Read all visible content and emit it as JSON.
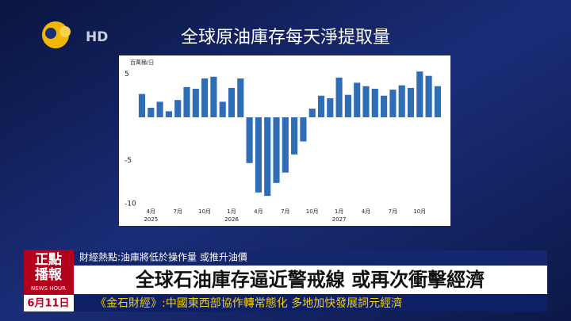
{
  "header": {
    "logo_text": "HD",
    "title": "全球原油庫存每天淨提取量"
  },
  "chart_data": {
    "type": "bar",
    "unit_label": "百萬桶/日",
    "categories": [
      null,
      "4月",
      null,
      null,
      "7月",
      null,
      null,
      "10月",
      null,
      null,
      "1月",
      null,
      null,
      "4月",
      null,
      null,
      "7月",
      null,
      null,
      "10月",
      null,
      null,
      "1月",
      null,
      null,
      "4月",
      null,
      null,
      "7月",
      null,
      null,
      "10月",
      null,
      null
    ],
    "category_years": [
      null,
      "2025",
      null,
      null,
      null,
      null,
      null,
      null,
      null,
      null,
      "2026",
      null,
      null,
      null,
      null,
      null,
      null,
      null,
      null,
      null,
      null,
      null,
      "2027",
      null,
      null,
      null,
      null,
      null,
      null,
      null,
      null,
      null,
      null,
      null
    ],
    "values": [
      2.7,
      1.1,
      1.8,
      0.7,
      2.0,
      3.5,
      3.3,
      4.5,
      4.7,
      1.8,
      3.4,
      4.5,
      -5.3,
      -8.7,
      -9.1,
      -7.6,
      -6.4,
      -4.3,
      -2.8,
      1.0,
      2.5,
      2.2,
      4.6,
      2.6,
      4.0,
      3.6,
      3.3,
      2.5,
      3.2,
      3.7,
      3.4,
      5.3,
      4.8,
      3.6
    ],
    "color": "#2f6db5",
    "ylim": [
      -10.7,
      6
    ],
    "yticks": [
      5,
      -5,
      -10
    ],
    "grid": false
  },
  "ticker": {
    "brand_line1": "正點",
    "brand_line2": "播報",
    "brand_sub": "NEWS HOUR",
    "topic": "財經熱點:油庫將低於操作量 或推升油價",
    "headline": "全球石油庫存逼近警戒線 或再次衝擊經濟",
    "date": "6月11日",
    "crawl": "《金石財經》:中國東西部協作轉常態化 多地加快發展詞元經濟"
  }
}
